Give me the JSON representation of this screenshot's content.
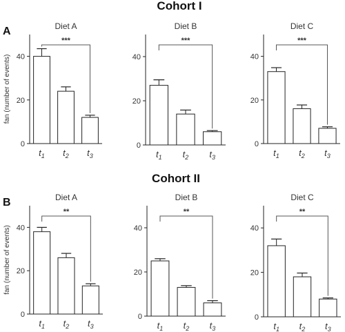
{
  "cohort_titles": [
    "Cohort I",
    "Cohort II"
  ],
  "panel_letters": [
    "A",
    "B"
  ],
  "chart_data": [
    {
      "type": "bar",
      "title": "Diet A",
      "ylabel": "fan (number of events)",
      "ylim": [
        0,
        50
      ],
      "yticks": [
        0,
        20,
        40
      ],
      "categories": [
        "t",
        "t",
        "t"
      ],
      "category_subscripts": [
        "1",
        "2",
        "3"
      ],
      "values": [
        40,
        24,
        12
      ],
      "errors": [
        3.5,
        2,
        1
      ],
      "annotation": "***",
      "bracket": [
        0,
        2
      ]
    },
    {
      "type": "bar",
      "title": "Diet B",
      "ylabel": "",
      "ylim": [
        0,
        50
      ],
      "yticks": [
        0,
        20,
        40
      ],
      "categories": [
        "t",
        "t",
        "t"
      ],
      "category_subscripts": [
        "1",
        "2",
        "3"
      ],
      "values": [
        27,
        14,
        6
      ],
      "errors": [
        2.5,
        1.8,
        0.5
      ],
      "annotation": "***",
      "bracket": [
        0,
        2
      ]
    },
    {
      "type": "bar",
      "title": "Diet C",
      "ylabel": "",
      "ylim": [
        0,
        50
      ],
      "yticks": [
        0,
        20,
        40
      ],
      "categories": [
        "t",
        "t",
        "t"
      ],
      "category_subscripts": [
        "1",
        "2",
        "3"
      ],
      "values": [
        33,
        16,
        7
      ],
      "errors": [
        1.8,
        1.7,
        0.7
      ],
      "annotation": "***",
      "bracket": [
        0,
        2
      ]
    },
    {
      "type": "bar",
      "title": "Diet A",
      "ylabel": "fan (number of events)",
      "ylim": [
        0,
        50
      ],
      "yticks": [
        0,
        20,
        40
      ],
      "categories": [
        "t",
        "t",
        "t"
      ],
      "category_subscripts": [
        "1",
        "2",
        "3"
      ],
      "values": [
        38,
        26,
        13
      ],
      "errors": [
        2,
        2,
        1
      ],
      "annotation": "**",
      "bracket": [
        0,
        2
      ]
    },
    {
      "type": "bar",
      "title": "Diet B",
      "ylabel": "",
      "ylim": [
        0,
        50
      ],
      "yticks": [
        0,
        20,
        40
      ],
      "categories": [
        "t",
        "t",
        "t"
      ],
      "category_subscripts": [
        "1",
        "2",
        "3"
      ],
      "values": [
        25,
        13,
        6
      ],
      "errors": [
        1,
        0.8,
        1
      ],
      "annotation": "**",
      "bracket": [
        0,
        2
      ]
    },
    {
      "type": "bar",
      "title": "Diet C",
      "ylabel": "",
      "ylim": [
        0,
        50
      ],
      "yticks": [
        0,
        20,
        40
      ],
      "categories": [
        "t",
        "t",
        "t"
      ],
      "category_subscripts": [
        "1",
        "2",
        "3"
      ],
      "values": [
        32,
        18,
        8
      ],
      "errors": [
        3,
        1.7,
        0.5
      ],
      "annotation": "**",
      "bracket": [
        0,
        2
      ]
    }
  ]
}
